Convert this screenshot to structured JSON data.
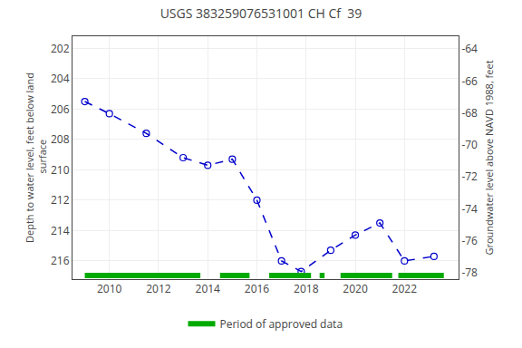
{
  "chart_data": {
    "type": "line",
    "title": "USGS 383259076531001 CH Cf  39",
    "ylabel": "Depth to water level, feet below land\n surface",
    "y2label": "Groundwater level above NAVD 1988, feet",
    "x": [
      2009.0,
      2010.0,
      2011.5,
      2013.0,
      2014.0,
      2015.0,
      2016.0,
      2017.0,
      2017.8,
      2019.0,
      2020.0,
      2021.0,
      2022.0,
      2023.2
    ],
    "series": [
      {
        "values": [
          205.5,
          206.3,
          207.6,
          209.2,
          209.7,
          209.3,
          212.0,
          216.0,
          216.7,
          215.3,
          214.3,
          213.5,
          216.0,
          215.7
        ],
        "color": "#0000cc",
        "marker": "circle-open",
        "line_style": "dashed"
      }
    ],
    "xlim": [
      2008.5,
      2024.2
    ],
    "xticks": [
      2010,
      2012,
      2014,
      2016,
      2018,
      2020,
      2022
    ],
    "ylim": [
      217.2,
      201.2
    ],
    "yticks": [
      202,
      204,
      206,
      208,
      210,
      212,
      214,
      216
    ],
    "y2lim": [
      -78.4,
      -63.2
    ],
    "y2ticks": [
      -64,
      -66,
      -68,
      -70,
      -72,
      -74,
      -76,
      -78
    ],
    "grid": true,
    "legend": "bottom",
    "approved_periods": {
      "name": "Period of approved data",
      "color": "#00aa00",
      "ranges": [
        [
          2009.0,
          2013.7
        ],
        [
          2014.5,
          2015.7
        ],
        [
          2016.5,
          2018.2
        ],
        [
          2018.55,
          2018.75
        ],
        [
          2019.4,
          2021.5
        ],
        [
          2021.75,
          2023.6
        ]
      ]
    }
  }
}
